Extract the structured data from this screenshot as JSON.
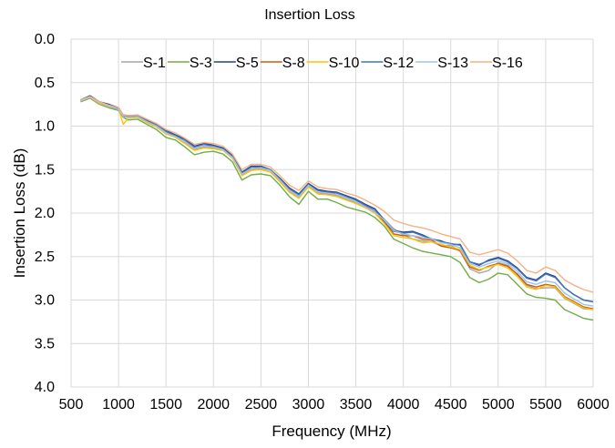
{
  "chart_data": {
    "type": "line",
    "title": "Insertion Loss",
    "xlabel": "Frequency (MHz)",
    "ylabel": "Insertion Loss (dB)",
    "xlim": [
      500,
      6000
    ],
    "ylim": [
      0.0,
      4.0
    ],
    "y_inverted": true,
    "x_ticks": [
      "500",
      "1000",
      "1500",
      "2000",
      "2500",
      "3000",
      "3500",
      "4000",
      "4500",
      "5000",
      "5500",
      "6000"
    ],
    "y_ticks": [
      "0.0",
      "0.5",
      "1.0",
      "1.5",
      "2.0",
      "2.5",
      "3.0",
      "3.5",
      "4.0"
    ],
    "grid": true,
    "legend_position": "top",
    "x": [
      600,
      700,
      800,
      900,
      1000,
      1050,
      1100,
      1200,
      1300,
      1400,
      1500,
      1600,
      1700,
      1800,
      1900,
      2000,
      2100,
      2200,
      2300,
      2400,
      2500,
      2600,
      2700,
      2800,
      2900,
      3000,
      3100,
      3200,
      3300,
      3400,
      3500,
      3600,
      3700,
      3800,
      3900,
      4000,
      4100,
      4200,
      4300,
      4400,
      4500,
      4600,
      4700,
      4800,
      4900,
      5000,
      5100,
      5200,
      5300,
      5400,
      5500,
      5600,
      5700,
      5800,
      5900,
      6000
    ],
    "series": [
      {
        "name": "S-1",
        "color": "#a5a5a5",
        "values": [
          0.7,
          0.66,
          0.73,
          0.76,
          0.8,
          0.88,
          0.9,
          0.89,
          0.95,
          1.0,
          1.08,
          1.12,
          1.19,
          1.27,
          1.24,
          1.25,
          1.27,
          1.36,
          1.56,
          1.5,
          1.49,
          1.51,
          1.63,
          1.75,
          1.82,
          1.69,
          1.77,
          1.78,
          1.8,
          1.84,
          1.88,
          1.92,
          1.98,
          2.07,
          2.18,
          2.25,
          2.3,
          2.32,
          2.33,
          2.38,
          2.37,
          2.44,
          2.64,
          2.69,
          2.66,
          2.57,
          2.6,
          2.71,
          2.83,
          2.87,
          2.86,
          2.86,
          2.98,
          3.04,
          3.1,
          3.11
        ]
      },
      {
        "name": "S-3",
        "color": "#70ad47",
        "values": [
          0.72,
          0.68,
          0.75,
          0.79,
          0.82,
          0.9,
          0.93,
          0.92,
          0.98,
          1.04,
          1.13,
          1.16,
          1.24,
          1.33,
          1.3,
          1.29,
          1.32,
          1.41,
          1.62,
          1.56,
          1.55,
          1.57,
          1.68,
          1.81,
          1.9,
          1.75,
          1.84,
          1.84,
          1.88,
          1.93,
          1.96,
          1.99,
          2.05,
          2.15,
          2.3,
          2.35,
          2.4,
          2.44,
          2.46,
          2.48,
          2.5,
          2.57,
          2.74,
          2.8,
          2.76,
          2.69,
          2.71,
          2.82,
          2.93,
          2.97,
          2.98,
          3.0,
          3.11,
          3.16,
          3.21,
          3.23
        ]
      },
      {
        "name": "S-5",
        "color": "#264478",
        "values": [
          0.7,
          0.65,
          0.72,
          0.75,
          0.79,
          0.87,
          0.88,
          0.88,
          0.93,
          0.98,
          1.05,
          1.1,
          1.15,
          1.23,
          1.2,
          1.22,
          1.25,
          1.34,
          1.53,
          1.46,
          1.46,
          1.5,
          1.6,
          1.71,
          1.78,
          1.66,
          1.73,
          1.75,
          1.76,
          1.8,
          1.84,
          1.9,
          1.95,
          2.08,
          2.2,
          2.22,
          2.21,
          2.25,
          2.3,
          2.32,
          2.36,
          2.36,
          2.56,
          2.6,
          2.54,
          2.51,
          2.55,
          2.63,
          2.74,
          2.77,
          2.69,
          2.73,
          2.86,
          2.94,
          3.0,
          3.02
        ]
      },
      {
        "name": "S-8",
        "color": "#c55a11",
        "values": [
          0.71,
          0.67,
          0.73,
          0.77,
          0.81,
          0.89,
          0.9,
          0.89,
          0.94,
          1.0,
          1.08,
          1.12,
          1.18,
          1.26,
          1.23,
          1.24,
          1.27,
          1.36,
          1.55,
          1.49,
          1.48,
          1.51,
          1.62,
          1.74,
          1.81,
          1.68,
          1.76,
          1.77,
          1.79,
          1.83,
          1.87,
          1.93,
          1.99,
          2.1,
          2.24,
          2.26,
          2.26,
          2.3,
          2.31,
          2.38,
          2.4,
          2.43,
          2.62,
          2.66,
          2.61,
          2.58,
          2.61,
          2.7,
          2.82,
          2.85,
          2.82,
          2.84,
          2.96,
          3.02,
          3.08,
          3.1
        ]
      },
      {
        "name": "S-10",
        "color": "#ffc000",
        "values": [
          0.71,
          0.67,
          0.74,
          0.77,
          0.8,
          0.98,
          0.91,
          0.9,
          0.96,
          1.01,
          1.09,
          1.13,
          1.2,
          1.28,
          1.25,
          1.26,
          1.28,
          1.37,
          1.57,
          1.51,
          1.5,
          1.53,
          1.64,
          1.76,
          1.83,
          1.7,
          1.78,
          1.79,
          1.81,
          1.85,
          1.89,
          1.94,
          2.0,
          2.12,
          2.26,
          2.28,
          2.3,
          2.34,
          2.33,
          2.36,
          2.39,
          2.42,
          2.6,
          2.65,
          2.62,
          2.59,
          2.63,
          2.73,
          2.85,
          2.88,
          2.83,
          2.85,
          2.97,
          3.03,
          3.09,
          3.11
        ]
      },
      {
        "name": "S-12",
        "color": "#4472c4",
        "values": [
          0.7,
          0.66,
          0.72,
          0.76,
          0.8,
          0.88,
          0.89,
          0.88,
          0.93,
          0.98,
          1.06,
          1.11,
          1.16,
          1.24,
          1.21,
          1.23,
          1.26,
          1.35,
          1.54,
          1.47,
          1.47,
          1.5,
          1.61,
          1.72,
          1.79,
          1.67,
          1.74,
          1.76,
          1.77,
          1.81,
          1.85,
          1.91,
          1.96,
          2.09,
          2.21,
          2.23,
          2.22,
          2.26,
          2.3,
          2.33,
          2.35,
          2.37,
          2.56,
          2.59,
          2.55,
          2.52,
          2.56,
          2.64,
          2.75,
          2.78,
          2.7,
          2.74,
          2.86,
          2.94,
          3.0,
          3.02
        ]
      },
      {
        "name": "S-13",
        "color": "#9dc3e6",
        "values": [
          0.71,
          0.67,
          0.73,
          0.77,
          0.81,
          0.89,
          0.9,
          0.89,
          0.95,
          1.0,
          1.08,
          1.12,
          1.18,
          1.26,
          1.23,
          1.24,
          1.27,
          1.36,
          1.55,
          1.49,
          1.48,
          1.51,
          1.62,
          1.74,
          1.81,
          1.68,
          1.76,
          1.77,
          1.79,
          1.83,
          1.87,
          1.93,
          1.99,
          2.08,
          2.2,
          2.24,
          2.26,
          2.28,
          2.3,
          2.34,
          2.36,
          2.4,
          2.58,
          2.62,
          2.58,
          2.55,
          2.58,
          2.67,
          2.79,
          2.82,
          2.78,
          2.8,
          2.92,
          2.99,
          3.05,
          3.07
        ]
      },
      {
        "name": "S-16",
        "color": "#f4b183",
        "values": [
          0.7,
          0.66,
          0.72,
          0.76,
          0.79,
          0.87,
          0.88,
          0.87,
          0.92,
          0.97,
          1.04,
          1.08,
          1.14,
          1.21,
          1.19,
          1.2,
          1.23,
          1.32,
          1.5,
          1.44,
          1.44,
          1.47,
          1.57,
          1.68,
          1.74,
          1.63,
          1.7,
          1.72,
          1.73,
          1.77,
          1.8,
          1.85,
          1.91,
          1.98,
          2.08,
          2.12,
          2.15,
          2.17,
          2.2,
          2.24,
          2.27,
          2.3,
          2.45,
          2.48,
          2.45,
          2.42,
          2.46,
          2.55,
          2.66,
          2.69,
          2.62,
          2.66,
          2.77,
          2.83,
          2.88,
          2.91
        ]
      }
    ]
  }
}
